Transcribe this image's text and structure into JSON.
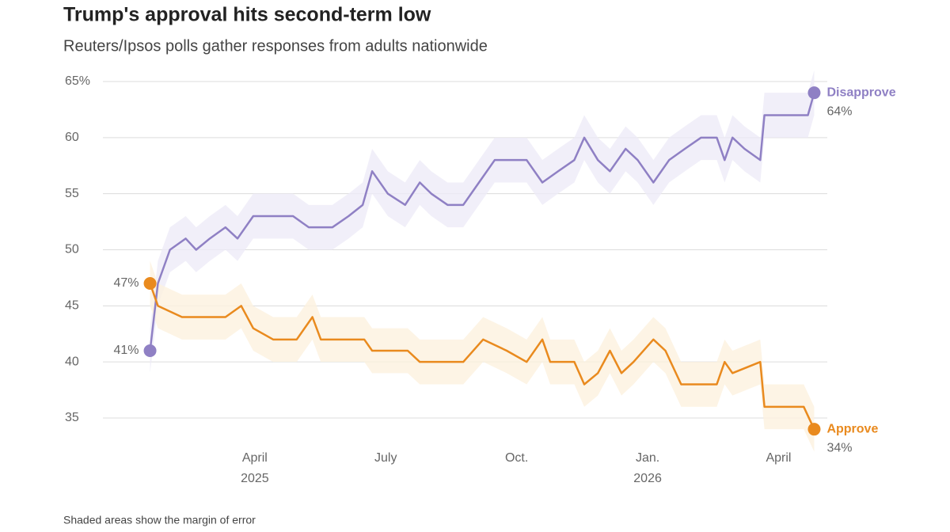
{
  "chart_data": {
    "type": "line",
    "title": "Trump's approval hits second-term low",
    "subtitle": "Reuters/Ipsos polls gather responses from adults nationwide",
    "note": "Shaded areas show the margin of error",
    "xlim": [
      2024.96,
      2026.343
    ],
    "xticks": [
      {
        "value": 2025.25,
        "label": "April"
      },
      {
        "value": 2025.5,
        "label": "July"
      },
      {
        "value": 2025.75,
        "label": "Oct."
      },
      {
        "value": 2026.0,
        "label": "Jan."
      },
      {
        "value": 2026.25,
        "label": "April"
      }
    ],
    "xtick_years": [
      {
        "value": 2025.25,
        "label": "2025"
      },
      {
        "value": 2026.0,
        "label": "2026"
      }
    ],
    "ylim": [
      35,
      65
    ],
    "yticks": [
      35,
      40,
      45,
      50,
      55,
      60,
      {
        "value": 65,
        "label": "65%"
      }
    ],
    "grid": true,
    "series": [
      {
        "name": "Disapprove",
        "color": "#8f80c4",
        "band_color": "#eeebf7",
        "margin": 2,
        "x": [
          2025.05,
          2025.065,
          2025.088,
          2025.118,
          2025.138,
          2025.164,
          2025.194,
          2025.217,
          2025.247,
          2025.323,
          2025.353,
          2025.398,
          2025.429,
          2025.456,
          2025.474,
          2025.504,
          2025.537,
          2025.565,
          2025.587,
          2025.618,
          2025.648,
          2025.678,
          2025.708,
          2025.769,
          2025.799,
          2025.829,
          2025.86,
          2025.879,
          2025.905,
          2025.928,
          2025.958,
          2025.981,
          2026.011,
          2026.041,
          2026.071,
          2026.102,
          2026.132,
          2026.147,
          2026.162,
          2026.185,
          2026.215,
          2026.223,
          2026.306,
          2026.318
        ],
        "values": [
          41,
          47,
          50,
          51,
          50,
          51,
          52,
          51,
          53,
          53,
          52,
          52,
          53,
          54,
          57,
          55,
          54,
          56,
          55,
          54,
          54,
          56,
          58,
          58,
          56,
          57,
          58,
          60,
          58,
          57,
          59,
          58,
          56,
          58,
          59,
          60,
          60,
          58,
          60,
          59,
          58,
          62,
          62,
          64
        ],
        "value_labels": [
          "41%",
          null,
          null,
          null,
          null,
          null,
          null,
          null,
          null,
          null,
          null,
          null,
          null,
          null,
          null,
          null,
          null,
          null,
          null,
          null,
          null,
          null,
          null,
          null,
          null,
          null,
          null,
          null,
          null,
          null,
          null,
          null,
          null,
          null,
          null,
          null,
          null,
          null,
          null,
          null,
          null,
          null,
          null,
          "64%"
        ]
      },
      {
        "name": "Approve",
        "color": "#e98a1e",
        "band_color": "#fdf1de",
        "margin": 2,
        "x": [
          2025.05,
          2025.065,
          2025.111,
          2025.194,
          2025.224,
          2025.247,
          2025.285,
          2025.33,
          2025.36,
          2025.376,
          2025.459,
          2025.474,
          2025.542,
          2025.565,
          2025.648,
          2025.686,
          2025.731,
          2025.769,
          2025.799,
          2025.814,
          2025.86,
          2025.879,
          2025.905,
          2025.928,
          2025.95,
          2025.973,
          2026.011,
          2026.034,
          2026.064,
          2026.132,
          2026.147,
          2026.162,
          2026.215,
          2026.223,
          2026.298,
          2026.318
        ],
        "values": [
          47,
          45,
          44,
          44,
          45,
          43,
          42,
          42,
          44,
          42,
          42,
          41,
          41,
          40,
          40,
          42,
          41,
          40,
          42,
          40,
          40,
          38,
          39,
          41,
          39,
          40,
          42,
          41,
          38,
          38,
          40,
          39,
          40,
          36,
          36,
          34
        ],
        "value_labels": [
          "47%",
          null,
          null,
          null,
          null,
          null,
          null,
          null,
          null,
          null,
          null,
          null,
          null,
          null,
          null,
          null,
          null,
          null,
          null,
          null,
          null,
          null,
          null,
          null,
          null,
          null,
          null,
          null,
          null,
          null,
          null,
          null,
          null,
          null,
          null,
          "34%"
        ]
      }
    ]
  }
}
